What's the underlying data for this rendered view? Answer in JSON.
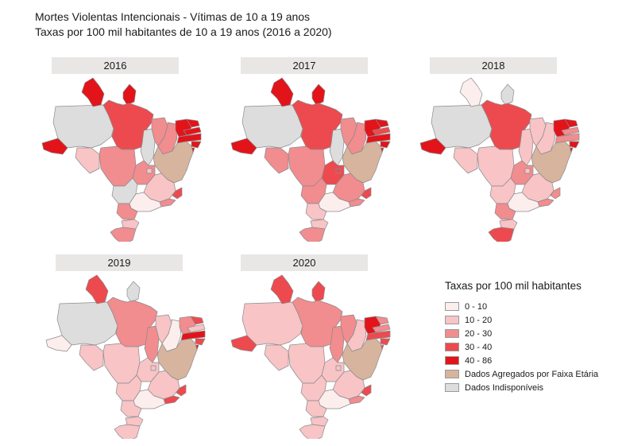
{
  "title": {
    "line1": "Mortes Violentas Intencionais - Vítimas de 10 a 19 anos",
    "line2": "Taxas por 100 mil habitantes de 10 a 19 anos (2016 a 2020)"
  },
  "colors": {
    "c0_10": "#fdeeee",
    "c10_20": "#f8c4c6",
    "c20_30": "#f18c8f",
    "c30_40": "#ec4a4f",
    "c40_86": "#e3131a",
    "agg": "#d7b49e",
    "na": "#dcdddc"
  },
  "legend": {
    "title": "Taxas por 100 mil habitantes",
    "items": [
      {
        "key": "c0_10",
        "label": "0 - 10"
      },
      {
        "key": "c10_20",
        "label": "10 - 20"
      },
      {
        "key": "c20_30",
        "label": "20 - 30"
      },
      {
        "key": "c30_40",
        "label": "30 - 40"
      },
      {
        "key": "c40_86",
        "label": "40 - 86"
      },
      {
        "key": "agg",
        "label": "Dados Agregados por Faixa Etária"
      },
      {
        "key": "na",
        "label": "Dados Indisponíveis"
      }
    ]
  },
  "maps": [
    {
      "year": "2016",
      "states": {
        "AC": "c40_86",
        "AM": "na",
        "RR": "c40_86",
        "AP": "c40_86",
        "PA": "c30_40",
        "RO": "c10_20",
        "MT": "c20_30",
        "TO": "na",
        "MA": "c20_30",
        "PI": "c20_30",
        "CE": "c40_86",
        "RN": "c40_86",
        "PB": "c40_86",
        "PE": "c40_86",
        "AL": "c40_86",
        "SE": "c40_86",
        "BA": "agg",
        "GO": "c20_30",
        "DF": "c10_20",
        "MS": "na",
        "MG": "c10_20",
        "ES": "c30_40",
        "RJ": "c20_30",
        "SP": "c0_10",
        "PR": "c20_30",
        "SC": "c10_20",
        "RS": "c20_30"
      }
    },
    {
      "year": "2017",
      "states": {
        "AC": "c40_86",
        "AM": "na",
        "RR": "c40_86",
        "AP": "c40_86",
        "PA": "c30_40",
        "RO": "c20_30",
        "MT": "c20_30",
        "TO": "na",
        "MA": "c20_30",
        "PI": "c20_30",
        "CE": "c40_86",
        "RN": "c40_86",
        "PB": "c30_40",
        "PE": "c40_86",
        "AL": "c40_86",
        "SE": "c40_86",
        "BA": "agg",
        "GO": "c30_40",
        "DF": "c30_40",
        "MS": "c20_30",
        "MG": "c20_30",
        "ES": "c30_40",
        "RJ": "c20_30",
        "SP": "c0_10",
        "PR": "c10_20",
        "SC": "c10_20",
        "RS": "c20_30"
      }
    },
    {
      "year": "2018",
      "states": {
        "AC": "c40_86",
        "AM": "na",
        "RR": "c0_10",
        "AP": "na",
        "PA": "c30_40",
        "RO": "c10_20",
        "MT": "c10_20",
        "TO": "c10_20",
        "MA": "c10_20",
        "PI": "c10_20",
        "CE": "c40_86",
        "RN": "c40_86",
        "PB": "c20_30",
        "PE": "c20_30",
        "AL": "c40_86",
        "SE": "c40_86",
        "BA": "agg",
        "GO": "c20_30",
        "DF": "c10_20",
        "MS": "c10_20",
        "MG": "c10_20",
        "ES": "c20_30",
        "RJ": "c20_30",
        "SP": "c0_10",
        "PR": "c20_30",
        "SC": "c10_20",
        "RS": "c30_40"
      }
    },
    {
      "year": "2019",
      "states": {
        "AC": "c0_10",
        "AM": "na",
        "RR": "c30_40",
        "AP": "na",
        "PA": "c20_30",
        "RO": "c10_20",
        "MT": "c10_20",
        "TO": "c20_30",
        "MA": "c10_20",
        "PI": "c0_10",
        "CE": "c20_30",
        "RN": "c30_40",
        "PB": "c10_20",
        "PE": "c40_86",
        "AL": "c30_40",
        "SE": "c40_86",
        "BA": "agg",
        "GO": "c10_20",
        "DF": "c10_20",
        "MS": "c10_20",
        "MG": "c10_20",
        "ES": "c30_40",
        "RJ": "c30_40",
        "SP": "c0_10",
        "PR": "c10_20",
        "SC": "c10_20",
        "RS": "c10_20"
      }
    },
    {
      "year": "2020",
      "states": {
        "AC": "c30_40",
        "AM": "c10_20",
        "RR": "c30_40",
        "AP": "c30_40",
        "PA": "c20_30",
        "RO": "c10_20",
        "MT": "c10_20",
        "TO": "c20_30",
        "MA": "c20_30",
        "PI": "c10_20",
        "CE": "c40_86",
        "RN": "c20_30",
        "PB": "c20_30",
        "PE": "c30_40",
        "AL": "c30_40",
        "SE": "c30_40",
        "BA": "agg",
        "GO": "c10_20",
        "DF": "c10_20",
        "MS": "c10_20",
        "MG": "c10_20",
        "ES": "c30_40",
        "RJ": "c20_30",
        "SP": "c0_10",
        "PR": "c10_20",
        "SC": "c10_20",
        "RS": "c10_20"
      }
    }
  ]
}
